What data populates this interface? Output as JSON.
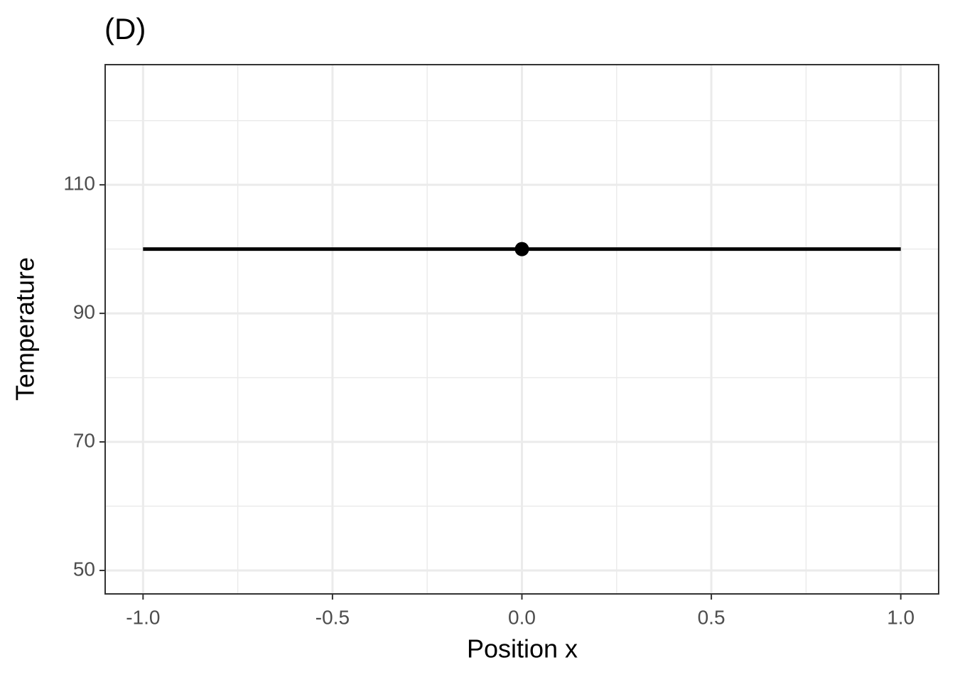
{
  "chart_data": {
    "type": "line",
    "title": "(D)",
    "xlabel": "Position x",
    "ylabel": "Temperature",
    "xlim": [
      -1.1,
      1.1
    ],
    "ylim": [
      46.35,
      128.7
    ],
    "xticks": [
      {
        "value": -1,
        "label": "-1.0"
      },
      {
        "value": -0.5,
        "label": "-0.5"
      },
      {
        "value": 0,
        "label": "0.0"
      },
      {
        "value": 0.5,
        "label": "0.5"
      },
      {
        "value": 1,
        "label": "1.0"
      }
    ],
    "yticks": [
      50,
      70,
      90,
      110
    ],
    "xminor": [
      -0.75,
      -0.25,
      0.25,
      0.75
    ],
    "yminor": [
      60,
      80,
      100,
      120
    ],
    "grid": true,
    "line": {
      "color": "#000000",
      "x": [
        -1,
        1
      ],
      "values": [
        100,
        100
      ]
    },
    "points": {
      "color": "#000000",
      "x": [
        0
      ],
      "values": [
        100
      ]
    }
  }
}
